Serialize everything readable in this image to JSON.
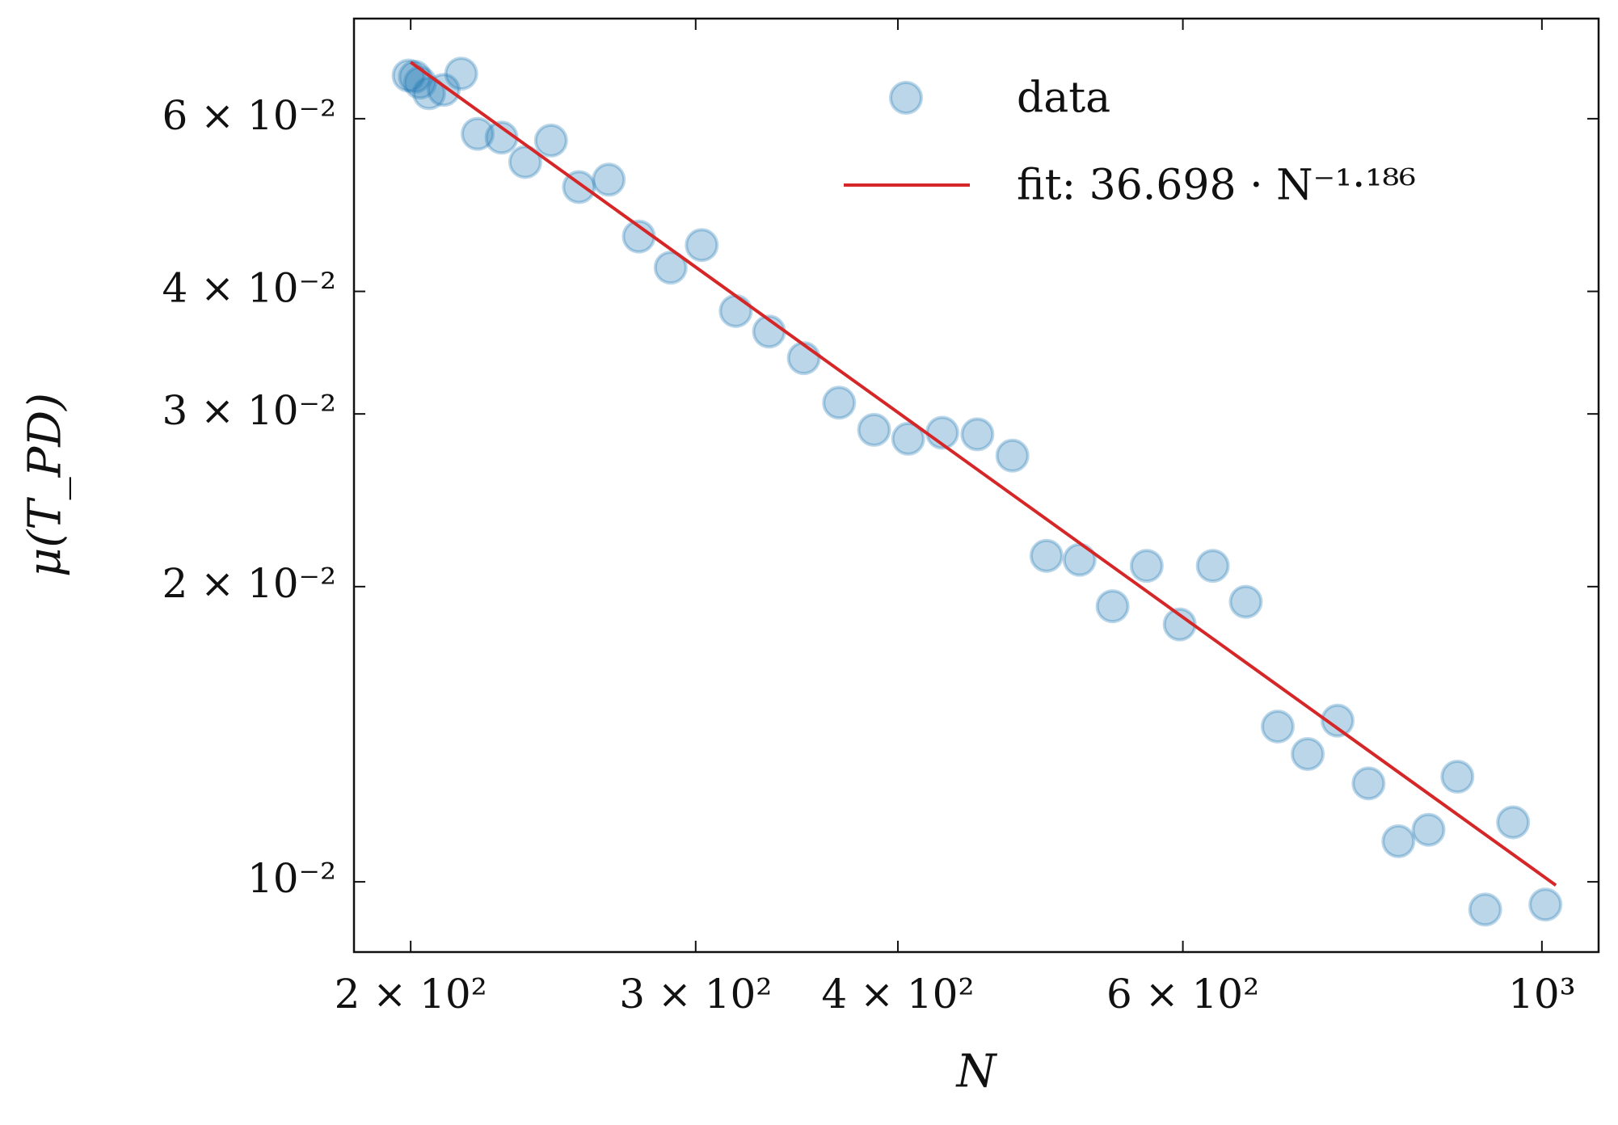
{
  "chart_data": {
    "type": "scatter",
    "xlabel": "N",
    "ylabel": "μ(T_PD)",
    "xscale": "log",
    "yscale": "log",
    "xlim": [
      184.5,
      1084
    ],
    "ylim": [
      0.00848,
      0.0759
    ],
    "xticks": [
      {
        "value": 200,
        "label": "2 × 10²"
      },
      {
        "value": 300,
        "label": "3 × 10²"
      },
      {
        "value": 400,
        "label": "4 × 10²"
      },
      {
        "value": 600,
        "label": "6 × 10²"
      },
      {
        "value": 1000,
        "label": "10³"
      }
    ],
    "yticks": [
      {
        "value": 0.01,
        "label": "10⁻²"
      },
      {
        "value": 0.02,
        "label": "2 × 10⁻²"
      },
      {
        "value": 0.03,
        "label": "3 × 10⁻²"
      },
      {
        "value": 0.04,
        "label": "4 × 10⁻²"
      },
      {
        "value": 0.06,
        "label": "6 × 10⁻²"
      }
    ],
    "legend": "upper right",
    "series": [
      {
        "name": "data",
        "color": "#1f77b4",
        "mode": "markers",
        "x": [
          199.4,
          201.2,
          202.7,
          205.3,
          209.6,
          214.9,
          220.0,
          227.6,
          235.4,
          244.2,
          254.1,
          265.1,
          276.7,
          289.5,
          302.6,
          317.6,
          333.0,
          349.9,
          367.9,
          386.7,
          405.9,
          426.1,
          447.9,
          470.8,
          494.2,
          518.0,
          542.9,
          569.9,
          597.3,
          626.1,
          656.2,
          686.7,
          716.6,
          747.7,
          781.4,
          815.3,
          851.0,
          886.7,
          922.5,
          959.8,
          1005
        ],
        "values": [
          0.0664,
          0.0662,
          0.0653,
          0.0637,
          0.0642,
          0.0667,
          0.0579,
          0.0574,
          0.0542,
          0.057,
          0.0511,
          0.052,
          0.0455,
          0.0423,
          0.0446,
          0.0382,
          0.0364,
          0.0342,
          0.0308,
          0.0289,
          0.0283,
          0.0287,
          0.0286,
          0.0272,
          0.0215,
          0.0213,
          0.0191,
          0.021,
          0.0183,
          0.021,
          0.0193,
          0.0144,
          0.0135,
          0.0146,
          0.0126,
          0.011,
          0.0113,
          0.0128,
          0.00937,
          0.0115,
          0.00948
        ]
      },
      {
        "name": "fit: 36.698 · N⁻¹·¹⁸⁶",
        "color": "#d62728",
        "mode": "line",
        "x": [
          200,
          1020
        ],
        "values": [
          0.0685,
          0.00992
        ]
      }
    ]
  }
}
